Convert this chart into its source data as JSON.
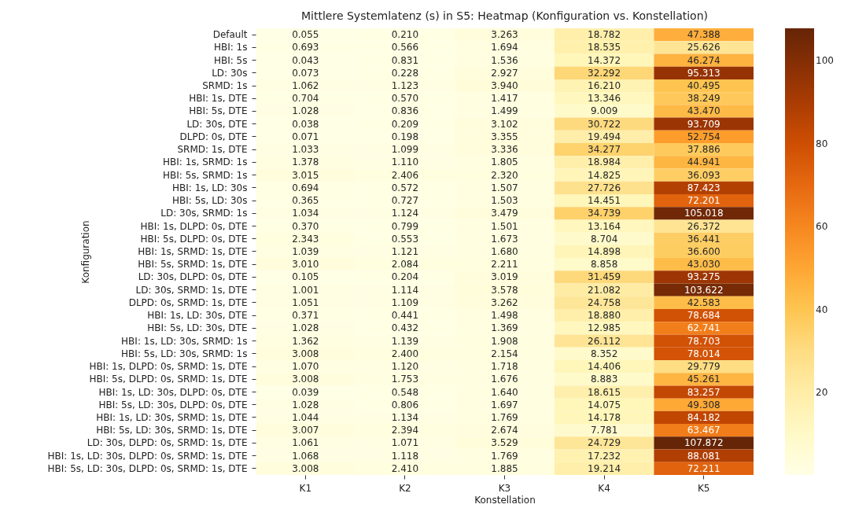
{
  "chart_data": {
    "type": "heatmap",
    "title": "Mittlere Systemlatenz (s) in S5: Heatmap (Konfiguration vs. Konstellation)",
    "xlabel": "Konstellation",
    "ylabel": "Konfiguration",
    "categories": [
      "K1",
      "K2",
      "K3",
      "K4",
      "K5"
    ],
    "y_categories": [
      "Default",
      "HBI: 1s",
      "HBI: 5s",
      "LD: 30s",
      "SRMD: 1s",
      "HBI: 1s, DTE",
      "HBI: 5s, DTE",
      "LD: 30s, DTE",
      "DLPD: 0s, DTE",
      "SRMD: 1s, DTE",
      "HBI: 1s, SRMD: 1s",
      "HBI: 5s, SRMD: 1s",
      "HBI: 1s, LD: 30s",
      "HBI: 5s, LD: 30s",
      "LD: 30s, SRMD: 1s",
      "HBI: 1s, DLPD: 0s, DTE",
      "HBI: 5s, DLPD: 0s, DTE",
      "HBI: 1s, SRMD: 1s, DTE",
      "HBI: 5s, SRMD: 1s, DTE",
      "LD: 30s, DLPD: 0s, DTE",
      "LD: 30s, SRMD: 1s, DTE",
      "DLPD: 0s, SRMD: 1s, DTE",
      "HBI: 1s, LD: 30s, DTE",
      "HBI: 5s, LD: 30s, DTE",
      "HBI: 1s, LD: 30s, SRMD: 1s",
      "HBI: 5s, LD: 30s, SRMD: 1s",
      "HBI: 1s, DLPD: 0s, SRMD: 1s, DTE",
      "HBI: 5s, DLPD: 0s, SRMD: 1s, DTE",
      "HBI: 1s, LD: 30s, DLPD: 0s, DTE",
      "HBI: 5s, LD: 30s, DLPD: 0s, DTE",
      "HBI: 1s, LD: 30s, SRMD: 1s, DTE",
      "HBI: 5s, LD: 30s, SRMD: 1s, DTE",
      "LD: 30s, DLPD: 0s, SRMD: 1s, DTE",
      "HBI: 1s, LD: 30s, DLPD: 0s, SRMD: 1s, DTE",
      "HBI: 5s, LD: 30s, DLPD: 0s, SRMD: 1s, DTE"
    ],
    "cells": [
      [
        0.055,
        0.21,
        3.263,
        18.782,
        47.388
      ],
      [
        0.693,
        0.566,
        1.694,
        18.535,
        25.626
      ],
      [
        0.043,
        0.831,
        1.536,
        14.372,
        46.274
      ],
      [
        0.073,
        0.228,
        2.927,
        32.292,
        95.313
      ],
      [
        1.062,
        1.123,
        3.94,
        16.21,
        40.495
      ],
      [
        0.704,
        0.57,
        1.417,
        13.346,
        38.249
      ],
      [
        1.028,
        0.836,
        1.499,
        9.009,
        43.47
      ],
      [
        0.038,
        0.209,
        3.102,
        30.722,
        93.709
      ],
      [
        0.071,
        0.198,
        3.355,
        19.494,
        52.754
      ],
      [
        1.033,
        1.099,
        3.336,
        34.277,
        37.886
      ],
      [
        1.378,
        1.11,
        1.805,
        18.984,
        44.941
      ],
      [
        3.015,
        2.406,
        2.32,
        14.825,
        36.093
      ],
      [
        0.694,
        0.572,
        1.507,
        27.726,
        87.423
      ],
      [
        0.365,
        0.727,
        1.503,
        14.451,
        72.201
      ],
      [
        1.034,
        1.124,
        3.479,
        34.739,
        105.018
      ],
      [
        0.37,
        0.799,
        1.501,
        13.164,
        26.372
      ],
      [
        2.343,
        0.553,
        1.673,
        8.704,
        36.441
      ],
      [
        1.039,
        1.121,
        1.68,
        14.898,
        36.6
      ],
      [
        3.01,
        2.084,
        2.211,
        8.858,
        43.03
      ],
      [
        0.105,
        0.204,
        3.019,
        31.459,
        93.275
      ],
      [
        1.001,
        1.114,
        3.578,
        21.082,
        103.622
      ],
      [
        1.051,
        1.109,
        3.262,
        24.758,
        42.583
      ],
      [
        0.371,
        0.441,
        1.498,
        18.88,
        78.684
      ],
      [
        1.028,
        0.432,
        1.369,
        12.985,
        62.741
      ],
      [
        1.362,
        1.139,
        1.908,
        26.112,
        78.703
      ],
      [
        3.008,
        2.4,
        2.154,
        8.352,
        78.014
      ],
      [
        1.07,
        1.12,
        1.718,
        14.406,
        29.779
      ],
      [
        3.008,
        1.753,
        1.676,
        8.883,
        45.261
      ],
      [
        0.039,
        0.548,
        1.64,
        18.615,
        83.257
      ],
      [
        1.028,
        0.806,
        1.697,
        14.075,
        49.308
      ],
      [
        1.044,
        1.134,
        1.769,
        14.178,
        84.182
      ],
      [
        3.007,
        2.394,
        2.674,
        7.781,
        63.467
      ],
      [
        1.061,
        1.071,
        3.529,
        24.729,
        107.872
      ],
      [
        1.068,
        1.118,
        1.769,
        17.232,
        88.081
      ],
      [
        3.008,
        2.41,
        1.885,
        19.214,
        72.211
      ]
    ],
    "cell_labels": [
      [
        "0.055",
        "0.210",
        "3.263",
        "18.782",
        "47.388"
      ],
      [
        "0.693",
        "0.566",
        "1.694",
        "18.535",
        "25.626"
      ],
      [
        "0.043",
        "0.831",
        "1.536",
        "14.372",
        "46.274"
      ],
      [
        "0.073",
        "0.228",
        "2.927",
        "32.292",
        "95.313"
      ],
      [
        "1.062",
        "1.123",
        "3.940",
        "16.210",
        "40.495"
      ],
      [
        "0.704",
        "0.570",
        "1.417",
        "13.346",
        "38.249"
      ],
      [
        "1.028",
        "0.836",
        "1.499",
        "9.009",
        "43.470"
      ],
      [
        "0.038",
        "0.209",
        "3.102",
        "30.722",
        "93.709"
      ],
      [
        "0.071",
        "0.198",
        "3.355",
        "19.494",
        "52.754"
      ],
      [
        "1.033",
        "1.099",
        "3.336",
        "34.277",
        "37.886"
      ],
      [
        "1.378",
        "1.110",
        "1.805",
        "18.984",
        "44.941"
      ],
      [
        "3.015",
        "2.406",
        "2.320",
        "14.825",
        "36.093"
      ],
      [
        "0.694",
        "0.572",
        "1.507",
        "27.726",
        "87.423"
      ],
      [
        "0.365",
        "0.727",
        "1.503",
        "14.451",
        "72.201"
      ],
      [
        "1.034",
        "1.124",
        "3.479",
        "34.739",
        "105.018"
      ],
      [
        "0.370",
        "0.799",
        "1.501",
        "13.164",
        "26.372"
      ],
      [
        "2.343",
        "0.553",
        "1.673",
        "8.704",
        "36.441"
      ],
      [
        "1.039",
        "1.121",
        "1.680",
        "14.898",
        "36.600"
      ],
      [
        "3.010",
        "2.084",
        "2.211",
        "8.858",
        "43.030"
      ],
      [
        "0.105",
        "0.204",
        "3.019",
        "31.459",
        "93.275"
      ],
      [
        "1.001",
        "1.114",
        "3.578",
        "21.082",
        "103.622"
      ],
      [
        "1.051",
        "1.109",
        "3.262",
        "24.758",
        "42.583"
      ],
      [
        "0.371",
        "0.441",
        "1.498",
        "18.880",
        "78.684"
      ],
      [
        "1.028",
        "0.432",
        "1.369",
        "12.985",
        "62.741"
      ],
      [
        "1.362",
        "1.139",
        "1.908",
        "26.112",
        "78.703"
      ],
      [
        "3.008",
        "2.400",
        "2.154",
        "8.352",
        "78.014"
      ],
      [
        "1.070",
        "1.120",
        "1.718",
        "14.406",
        "29.779"
      ],
      [
        "3.008",
        "1.753",
        "1.676",
        "8.883",
        "45.261"
      ],
      [
        "0.039",
        "0.548",
        "1.640",
        "18.615",
        "83.257"
      ],
      [
        "1.028",
        "0.806",
        "1.697",
        "14.075",
        "49.308"
      ],
      [
        "1.044",
        "1.134",
        "1.769",
        "14.178",
        "84.182"
      ],
      [
        "3.007",
        "2.394",
        "2.674",
        "7.781",
        "63.467"
      ],
      [
        "1.061",
        "1.071",
        "3.529",
        "24.729",
        "107.872"
      ],
      [
        "1.068",
        "1.118",
        "1.769",
        "17.232",
        "88.081"
      ],
      [
        "3.008",
        "2.410",
        "1.885",
        "19.214",
        "72.211"
      ]
    ],
    "clim": [
      0.038,
      107.872
    ],
    "cticks": [
      20,
      40,
      60,
      80,
      100
    ],
    "data_labels": true
  }
}
